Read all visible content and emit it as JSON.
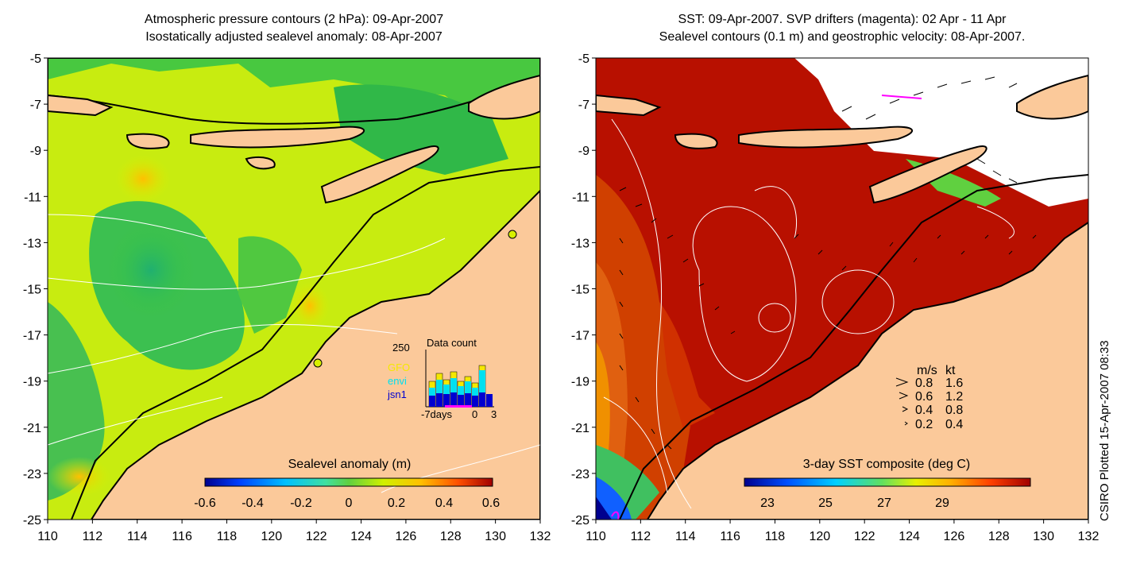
{
  "left_panel": {
    "title_line1": "Atmospheric pressure contours (2 hPa): 09-Apr-2007",
    "title_line2": "Isostatically adjusted sealevel anomaly: 08-Apr-2007",
    "colorbar_label": "Sealevel anomaly (m)",
    "colorbar_ticks": [
      "-0.6",
      "-0.4",
      "-0.2",
      "0",
      "0.2",
      "0.4",
      "0.6"
    ],
    "inset": {
      "y_max_label": "250",
      "title": "Data count",
      "legend": [
        {
          "label": "GFO",
          "color": "#f5e800"
        },
        {
          "label": "envi",
          "color": "#00e0f0"
        },
        {
          "label": "jsn1",
          "color": "#0000d0"
        }
      ],
      "x_labels": [
        "-7days",
        "0",
        "3"
      ]
    }
  },
  "right_panel": {
    "title_line1": "SST: 09-Apr-2007. SVP drifters (magenta): 02 Apr - 11 Apr",
    "title_line2": "Sealevel contours (0.1 m) and geostrophic velocity: 08-Apr-2007.",
    "colorbar_label": "3-day SST composite (deg C)",
    "colorbar_ticks": [
      "23",
      "25",
      "27",
      "29"
    ],
    "velocity_legend": {
      "header_ms": "m/s",
      "header_kt": "kt",
      "rows": [
        {
          "ms": "0.8",
          "kt": "1.6"
        },
        {
          "ms": "0.6",
          "kt": "1.2"
        },
        {
          "ms": "0.4",
          "kt": "0.8"
        },
        {
          "ms": "0.2",
          "kt": "0.4"
        }
      ]
    }
  },
  "axes": {
    "y_ticks": [
      "-5",
      "-7",
      "-9",
      "-11",
      "-13",
      "-15",
      "-17",
      "-19",
      "-21",
      "-23",
      "-25"
    ],
    "x_ticks": [
      "110",
      "112",
      "114",
      "116",
      "118",
      "120",
      "122",
      "124",
      "126",
      "128",
      "130",
      "132"
    ]
  },
  "sidebar_text": "CSIRO Plotted 15-Apr-2007 08:33",
  "colors": {
    "land": "#fbc99a",
    "sst_warm": "#b01000",
    "sla_green": "#3cc83c",
    "sla_yellow": "#d8f000"
  }
}
